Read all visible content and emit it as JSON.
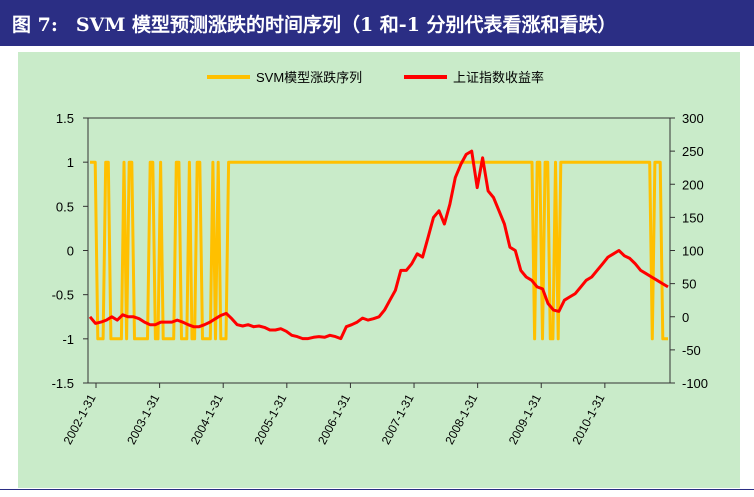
{
  "header": {
    "figure_label": "图 7:",
    "title": "SVM 模型预测涨跌的时间序列（1 和-1 分别代表看涨和看跌）"
  },
  "colors": {
    "header_bg": "#2b2e84",
    "chart_bg": "#c9ebc9",
    "svm_series": "#ffc000",
    "return_series": "#ff0000",
    "axis": "#333333"
  },
  "chart_data": {
    "type": "line",
    "title": "",
    "legend_placement": "top-center",
    "grid": false,
    "x_ticks": [
      "2002-1-31",
      "2003-1-31",
      "2004-1-31",
      "2005-1-31",
      "2006-1-31",
      "2007-1-31",
      "2008-1-31",
      "2009-1-31",
      "2010-1-31"
    ],
    "y_left": {
      "ylim": [
        -1.5,
        1.5
      ],
      "ticks": [
        "1.5",
        "1",
        "0.5",
        "0",
        "-0.5",
        "-1",
        "-1.5"
      ]
    },
    "y_right": {
      "ylim": [
        -100,
        300
      ],
      "ticks": [
        "300",
        "250",
        "200",
        "150",
        "100",
        "50",
        "0",
        "-50",
        "-100"
      ]
    },
    "series": [
      {
        "name": "SVM模型涨跌序列",
        "axis": "left",
        "color": "#ffc000",
        "values": [
          1,
          1,
          1,
          -1,
          -1,
          -1,
          1,
          1,
          -1,
          -1,
          -1,
          -1,
          -1,
          1,
          -1,
          1,
          1,
          -1,
          -1,
          -1,
          -1,
          -1,
          -1,
          1,
          1,
          -1,
          -1,
          1,
          -1,
          -1,
          -1,
          -1,
          -1,
          1,
          1,
          -1,
          -1,
          -1,
          1,
          -1,
          -1,
          1,
          1,
          -1,
          -1,
          -1,
          -1,
          1,
          -1,
          1,
          -1,
          -1,
          -1,
          1,
          1,
          1,
          1,
          1,
          1,
          1,
          1,
          1,
          1,
          1,
          1,
          1,
          1,
          1,
          1,
          1,
          1,
          1,
          1,
          1,
          1,
          1,
          1,
          1,
          1,
          1,
          1,
          1,
          1,
          1,
          1,
          1,
          1,
          1,
          1,
          1,
          1,
          1,
          1,
          1,
          1,
          1,
          1,
          1,
          1,
          1,
          1,
          1,
          1,
          1,
          1,
          1,
          1,
          1,
          1,
          1,
          1,
          1,
          1,
          1,
          1,
          1,
          1,
          1,
          1,
          1,
          1,
          1,
          1,
          1,
          1,
          1,
          1,
          1,
          1,
          1,
          1,
          1,
          1,
          1,
          1,
          1,
          1,
          1,
          1,
          1,
          1,
          1,
          1,
          1,
          1,
          1,
          1,
          1,
          1,
          1,
          1,
          1,
          1,
          1,
          1,
          1,
          1,
          1,
          1,
          1,
          1,
          1,
          1,
          1,
          1,
          1,
          1,
          1,
          1,
          1,
          -1,
          1,
          1,
          -1,
          1,
          1,
          -1,
          -1,
          1,
          -1,
          1,
          1,
          1,
          1,
          1,
          1,
          1,
          1,
          1,
          1,
          1,
          1,
          1,
          1,
          1,
          1,
          1,
          1,
          1,
          1,
          1,
          1,
          1,
          1,
          1,
          1,
          1,
          1,
          1,
          1,
          1,
          1,
          1,
          1,
          1,
          -1,
          1,
          1,
          1,
          -1,
          -1,
          -1
        ]
      },
      {
        "name": "上证指数收益率",
        "axis": "right",
        "color": "#ff0000",
        "values": [
          0,
          -10,
          -8,
          -5,
          0,
          -5,
          3,
          0,
          0,
          -3,
          -8,
          -12,
          -12,
          -8,
          -8,
          -8,
          -5,
          -8,
          -12,
          -15,
          -15,
          -12,
          -8,
          -3,
          2,
          5,
          -3,
          -12,
          -14,
          -12,
          -15,
          -14,
          -16,
          -20,
          -20,
          -18,
          -22,
          -28,
          -30,
          -33,
          -33,
          -31,
          -30,
          -31,
          -28,
          -30,
          -33,
          -15,
          -12,
          -8,
          -2,
          -5,
          -3,
          0,
          10,
          25,
          40,
          70,
          70,
          80,
          95,
          90,
          120,
          150,
          160,
          140,
          170,
          210,
          230,
          245,
          250,
          195,
          240,
          190,
          180,
          160,
          140,
          105,
          100,
          70,
          60,
          55,
          45,
          42,
          20,
          10,
          8,
          25,
          30,
          35,
          45,
          55,
          60,
          70,
          80,
          90,
          95,
          100,
          92,
          88,
          80,
          70,
          65,
          60,
          55,
          50,
          45
        ]
      }
    ]
  }
}
